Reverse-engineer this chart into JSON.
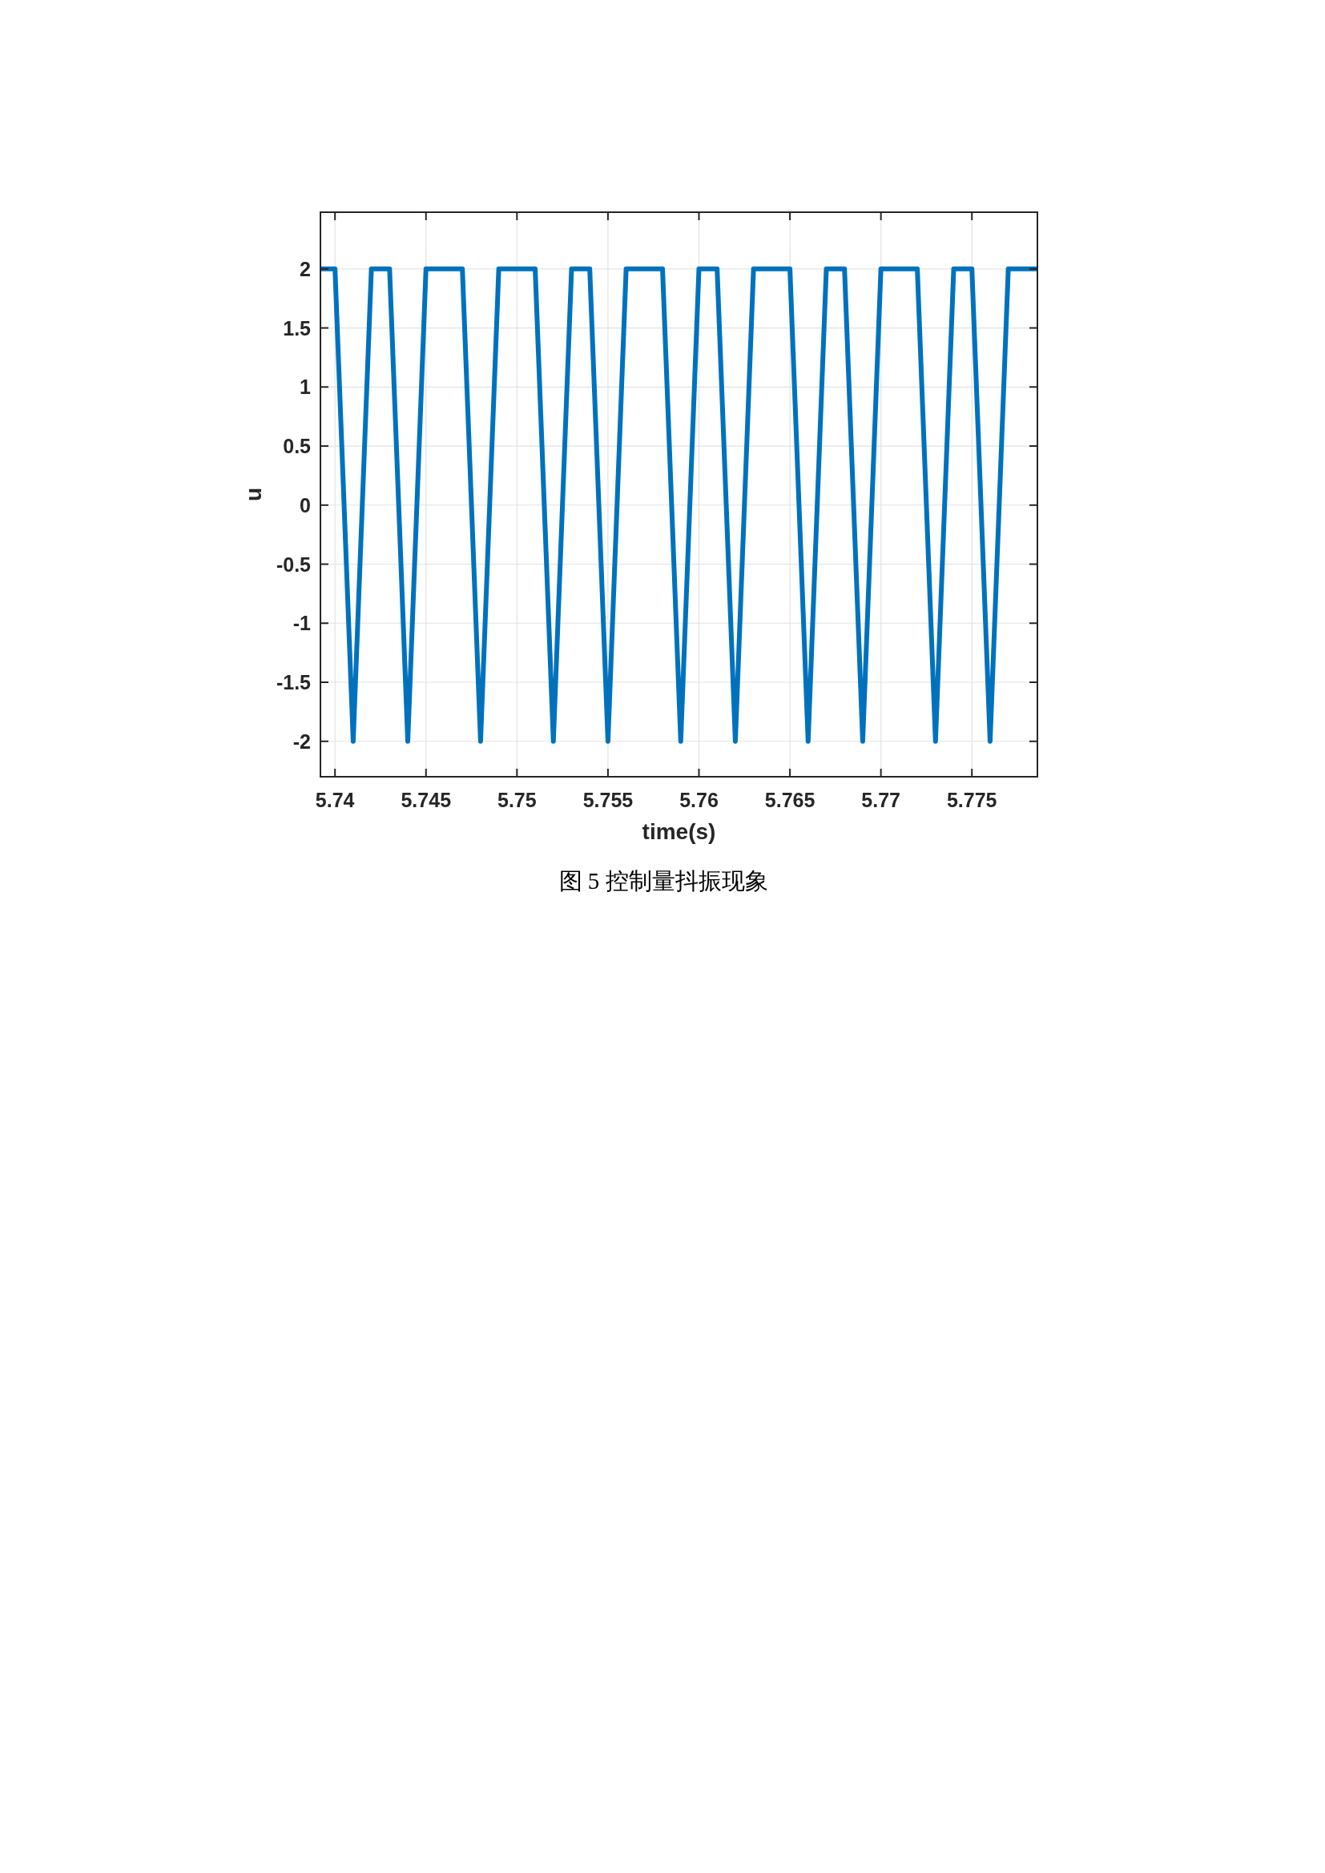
{
  "chart_data": {
    "type": "line",
    "xlabel": "time(s)",
    "ylabel": "u",
    "annotations": [
      "图 5 控制量抖振现象"
    ],
    "x": [
      5.7392,
      5.74,
      5.741,
      5.742,
      5.743,
      5.744,
      5.745,
      5.747,
      5.748,
      5.749,
      5.751,
      5.752,
      5.753,
      5.754,
      5.755,
      5.756,
      5.758,
      5.759,
      5.76,
      5.761,
      5.762,
      5.763,
      5.765,
      5.766,
      5.767,
      5.768,
      5.769,
      5.77,
      5.772,
      5.773,
      5.774,
      5.775,
      5.776,
      5.777,
      5.7786
    ],
    "series": [
      {
        "color": "#0072bd",
        "values": [
          2,
          2,
          -2,
          2,
          2,
          -2,
          2,
          2,
          -2,
          2,
          2,
          -2,
          2,
          2,
          -2,
          2,
          2,
          -2,
          2,
          2,
          -2,
          2,
          2,
          -2,
          2,
          2,
          -2,
          2,
          2,
          -2,
          2,
          2,
          -2,
          2,
          2
        ]
      }
    ],
    "xlim": [
      5.7392,
      5.7786
    ],
    "ylim": [
      -2.3,
      2.48
    ],
    "xticks": [
      5.74,
      5.745,
      5.75,
      5.755,
      5.76,
      5.765,
      5.77,
      5.775
    ],
    "yticks": [
      -2,
      -1.5,
      -1,
      -0.5,
      0,
      0.5,
      1,
      1.5,
      2
    ],
    "grid": true,
    "line_style": "solid"
  }
}
